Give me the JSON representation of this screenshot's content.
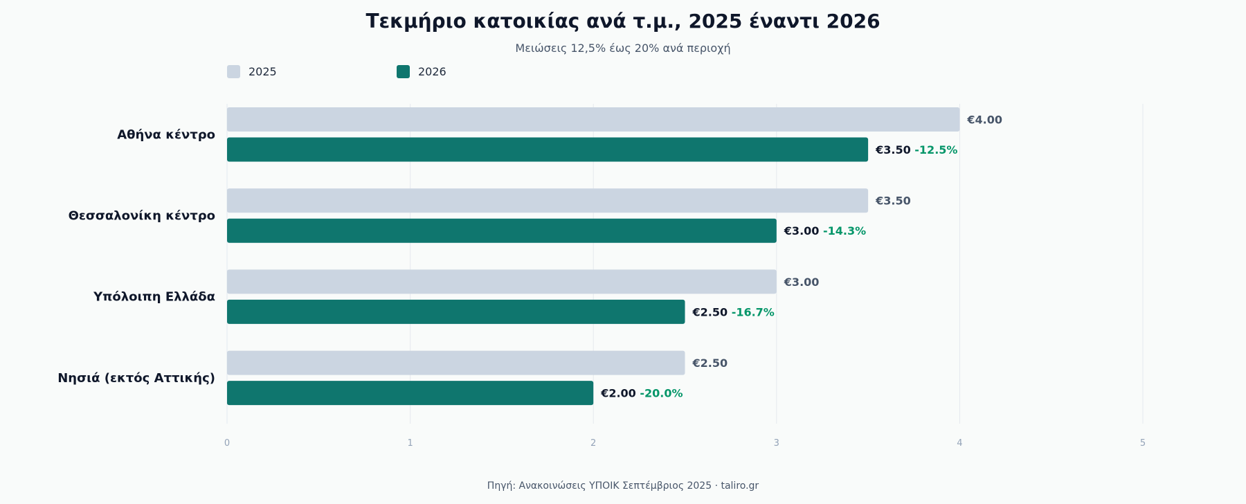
{
  "chart_data": {
    "type": "bar",
    "orientation": "horizontal",
    "title": "Τεκμήριο κατοικίας ανά τ.μ., 2025 έναντι 2026",
    "subtitle": "Μειώσεις 12,5% έως 20% ανά περιοχή",
    "source": "Πηγή: Ανακοινώσεις ΥΠΟΙΚ Σεπτέμβριος 2025 · taliro.gr",
    "categories": [
      "Αθήνα κέντρο",
      "Θεσσαλονίκη κέντρο",
      "Υπόλοιπη Ελλάδα",
      "Νησιά (εκτός Αττικής)"
    ],
    "series": [
      {
        "name": "2025",
        "color": "#cbd5e1",
        "values": [
          4.0,
          3.5,
          3.0,
          2.5
        ],
        "labels": [
          "€4.00",
          "€3.50",
          "€3.00",
          "€2.50"
        ]
      },
      {
        "name": "2026",
        "color": "#0f766e",
        "values": [
          3.5,
          3.0,
          2.5,
          2.0
        ],
        "labels": [
          "€3.50",
          "€3.00",
          "€2.50",
          "€2.00"
        ],
        "changes": [
          "-12.5%",
          "-14.3%",
          "-16.7%",
          "-20.0%"
        ]
      }
    ],
    "xlim": [
      0,
      5
    ],
    "xticks": [
      "0",
      "1",
      "2",
      "3",
      "4",
      "5"
    ],
    "grid": true,
    "legend_position": "top-left",
    "change_color": "#059669"
  }
}
